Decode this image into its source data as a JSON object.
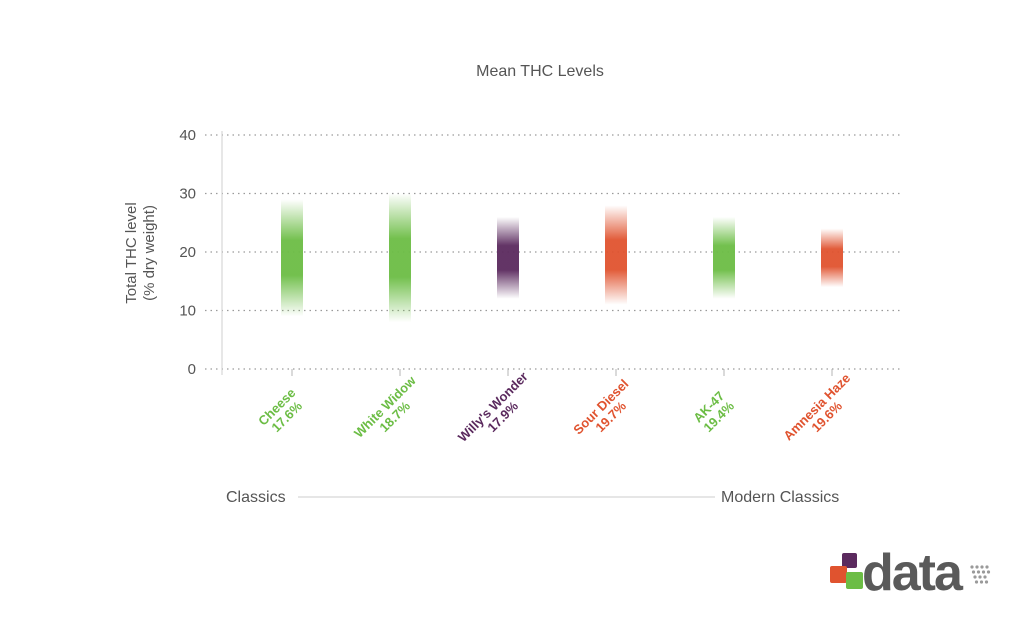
{
  "chart_data": {
    "type": "range-strip",
    "title": "Mean THC Levels",
    "ylabel_line1": "Total THC level",
    "ylabel_line2": "(% dry weight)",
    "ylim": [
      0,
      40
    ],
    "yticks": [
      "0",
      "10",
      "20",
      "30",
      "40"
    ],
    "grid": true,
    "categories": [
      "Cheese",
      "White Widow",
      "Willy's Wonder",
      "Sour Diesel",
      "AK-47",
      "Amnesia Haze"
    ],
    "mean_labels": [
      "17.6%",
      "18.7%",
      "17.9%",
      "19.7%",
      "19.4%",
      "19.6%"
    ],
    "ranges": [
      {
        "low": 9,
        "high": 29
      },
      {
        "low": 8,
        "high": 30
      },
      {
        "low": 12,
        "high": 26
      },
      {
        "low": 11,
        "high": 28
      },
      {
        "low": 12,
        "high": 26
      },
      {
        "low": 14,
        "high": 24
      }
    ],
    "colors": [
      "#6cbd45",
      "#6cbd45",
      "#5b2a5e",
      "#e0532f",
      "#6cbd45",
      "#e0532f"
    ],
    "group_left": "Classics",
    "group_right": "Modern Classics"
  },
  "logo": {
    "text": "data",
    "colors": [
      "#e0532f",
      "#6cbd45",
      "#5b2a5e"
    ]
  }
}
